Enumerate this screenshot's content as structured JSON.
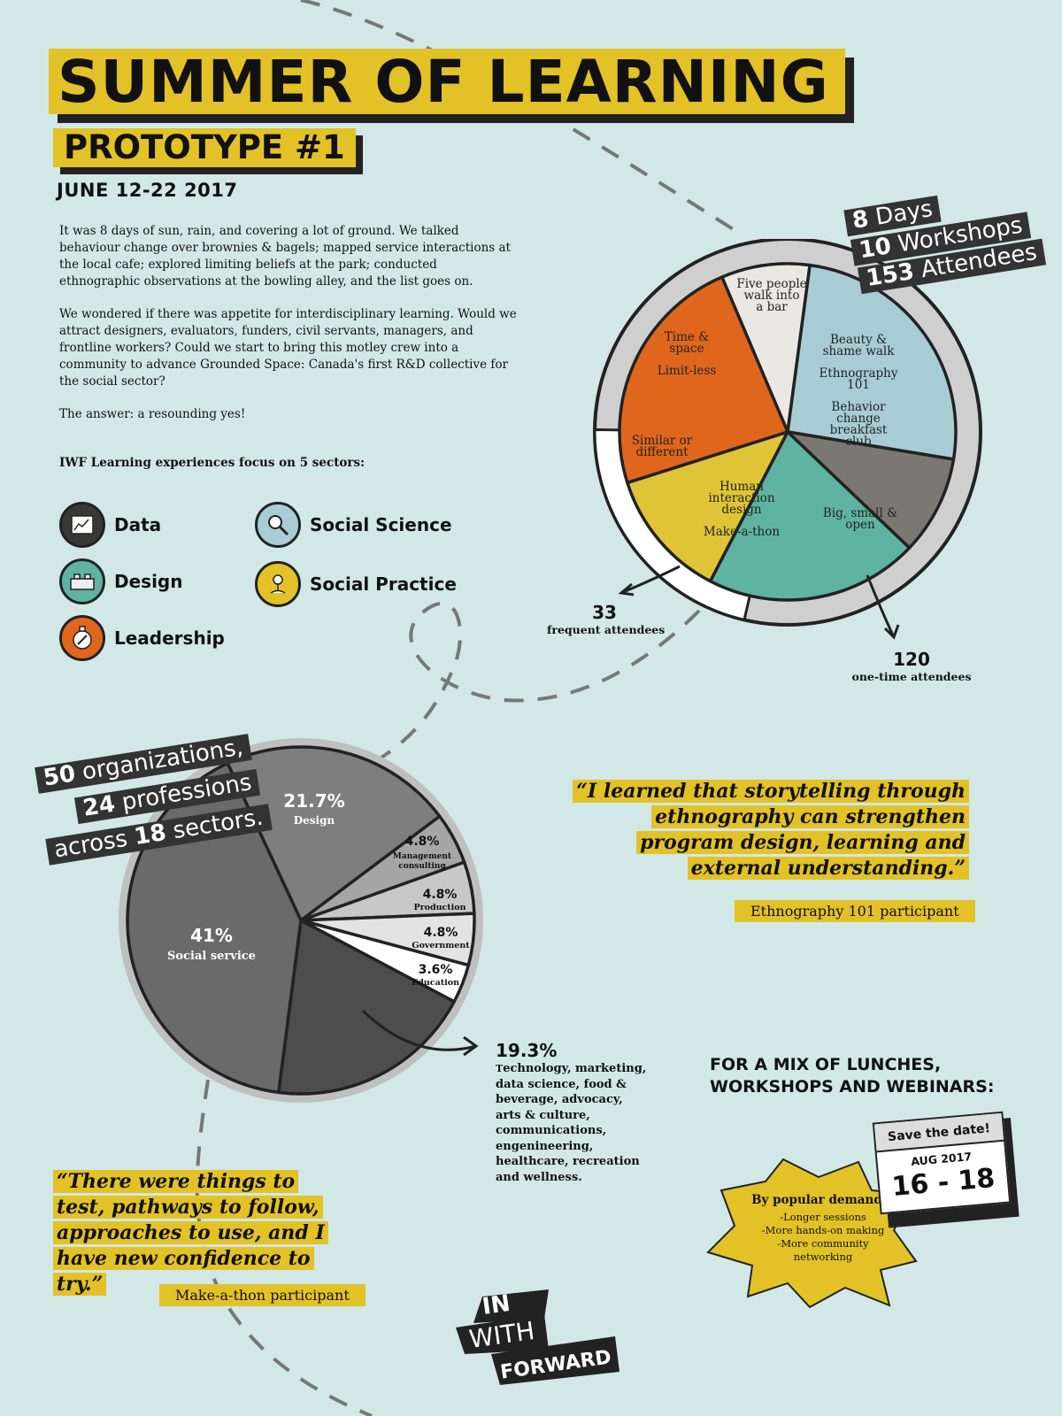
{
  "header": {
    "title": "SUMMER OF LEARNING",
    "subtitle": "PROTOTYPE #1",
    "dates": "JUNE 12-22 2017"
  },
  "intro": {
    "p1": "It was 8 days of sun, rain, and covering a lot of ground. We talked behaviour change over brownies & bagels; mapped service interactions at the local cafe; explored limiting beliefs at the park; conducted ethnographic observations at the bowling alley, and the list goes on.",
    "p2": "We wondered if there was appetite for interdisciplinary learning. Would we attract designers, evaluators, funders, civil servants, managers, and frontline workers? Could we start to bring this motley crew into a community to advance Grounded Space: Canada's first R&D collective for the social sector?",
    "p3": "The answer: a resounding yes!"
  },
  "sectors": {
    "title": "IWF Learning experiences focus on 5 sectors:",
    "items": [
      {
        "label": "Data",
        "color": "#3a3837",
        "icon": "chart-icon"
      },
      {
        "label": "Social Science",
        "color": "#a9cdd6",
        "icon": "magnifier-icon"
      },
      {
        "label": "Design",
        "color": "#5fb3a3",
        "icon": "lego-brick-icon"
      },
      {
        "label": "Social Practice",
        "color": "#e2c227",
        "icon": "flower-icon"
      },
      {
        "label": "Leadership",
        "color": "#e0661e",
        "icon": "compass-icon"
      }
    ]
  },
  "workshop_stats": {
    "days_num": "8",
    "days_label": "Days",
    "workshops_num": "10",
    "workshops_label": "Workshops",
    "attendees_num": "153",
    "attendees_label": "Attendees",
    "frequent_num": "33",
    "frequent_label": "frequent attendees",
    "onetime_num": "120",
    "onetime_label": "one-time attendees"
  },
  "org_stats": {
    "line1_num": "50",
    "line1_label": "organizations,",
    "line2_num": "24",
    "line2_label": "professions",
    "line3_pre": "across",
    "line3_num": "18",
    "line3_label": "sectors."
  },
  "other_sectors": {
    "pct": "19.3%",
    "lead": "T",
    "text": "echnology, marketing, data science, food & beverage, advocacy, arts & culture, communications, engenineering, healthcare, recreation and wellness."
  },
  "quotes": {
    "q1": "“I learned that storytelling through ethnography can strengthen program design, learning and external understanding.”",
    "q1_attrib": "Ethnography 101 participant",
    "q2": "“There were things to test, pathways to follow, approaches to use, and I have new confidence to try.”",
    "q2_attrib": "Make-a-thon participant"
  },
  "upcoming": {
    "title_l1": "FOR A MIX OF LUNCHES,",
    "title_l2": "WORKSHOPS AND WEBINARS:",
    "popular": "By popular demand...",
    "bullet1": "-Longer sessions",
    "bullet2": "-More hands-on making",
    "bullet3": "-More community",
    "bullet4": "networking",
    "save_the_date": "Save the date!",
    "month": "AUG 2017",
    "days": "16 - 18"
  },
  "logo": {
    "w1": "IN",
    "w2": "WITH",
    "w3": "FORWARD"
  },
  "chart_data": [
    {
      "type": "pie",
      "title": "",
      "slices": [
        {
          "label": "Five people walk into a bar",
          "value": 8.5,
          "color": "#e9e8e3"
        },
        {
          "label": "Beauty & shame walk / Ethnography 101 / Behavior change breakfast club",
          "value": 25.5,
          "color": "#a8ccd4"
        },
        {
          "label": "Big, small & open",
          "value": 9.5,
          "color": "#7b7874"
        },
        {
          "label": "Human interaction design / Make-a-thon",
          "value": 20.5,
          "color": "#5fb3a3"
        },
        {
          "label": "Similar or different",
          "value": 12.5,
          "color": "#dfc437"
        },
        {
          "label": "Time & space / Limit-less",
          "value": 23.5,
          "color": "#e0661e"
        }
      ],
      "attendees": {
        "frequent": 33,
        "one_time": 120,
        "total": 153
      }
    },
    {
      "type": "pie",
      "title": "",
      "slices": [
        {
          "label": "Design",
          "value": 21.7,
          "color": "#7e7e7e"
        },
        {
          "label": "Management consulting",
          "value": 4.8,
          "color": "#a6a6a6"
        },
        {
          "label": "Production",
          "value": 4.8,
          "color": "#c8c8c8"
        },
        {
          "label": "Government",
          "value": 4.8,
          "color": "#e3e3e3"
        },
        {
          "label": "Education",
          "value": 3.6,
          "color": "#ffffff"
        },
        {
          "label": "Other",
          "value": 19.3,
          "color": "#4d4d4d"
        },
        {
          "label": "Social service",
          "value": 41,
          "color": "#6a6a6a"
        }
      ]
    }
  ]
}
